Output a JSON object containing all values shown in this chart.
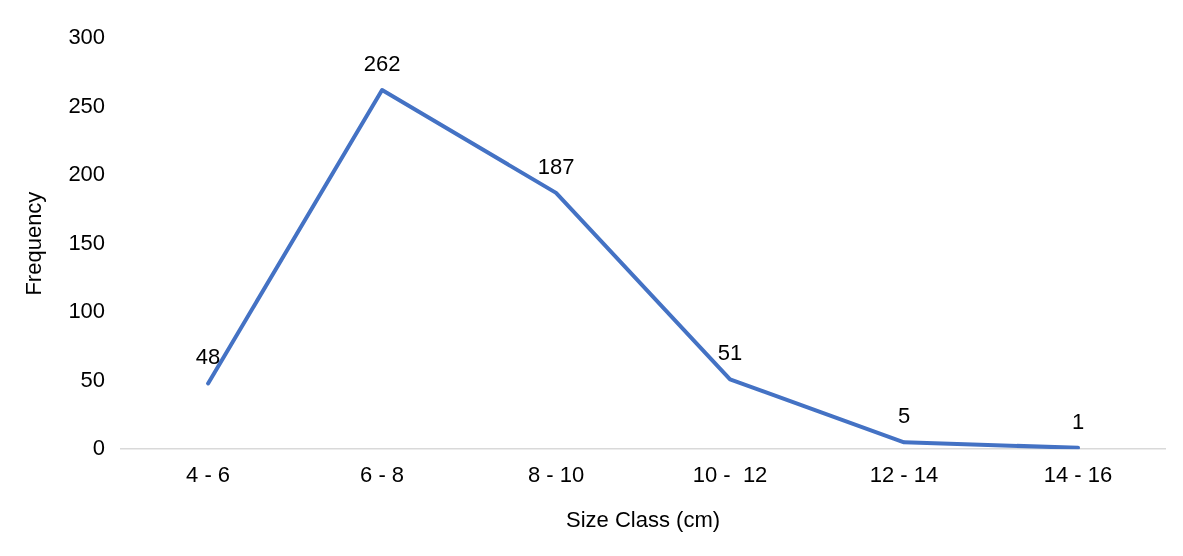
{
  "chart_data": {
    "type": "line",
    "xlabel": "Size Class (cm)",
    "ylabel": "Frequency",
    "categories": [
      "4 - 6",
      "6 - 8",
      "8 - 10",
      "10 -  12",
      "12 - 14",
      "14 - 16"
    ],
    "series": [
      {
        "color": "#4472c4",
        "values": [
          48,
          262,
          187,
          51,
          5,
          1
        ]
      }
    ],
    "ylim": [
      0,
      300
    ],
    "yticks": [
      0,
      50,
      100,
      150,
      200,
      250,
      300
    ],
    "grid": false,
    "legend": false,
    "marker": "none",
    "line_style": "solid",
    "data_labels": true
  }
}
